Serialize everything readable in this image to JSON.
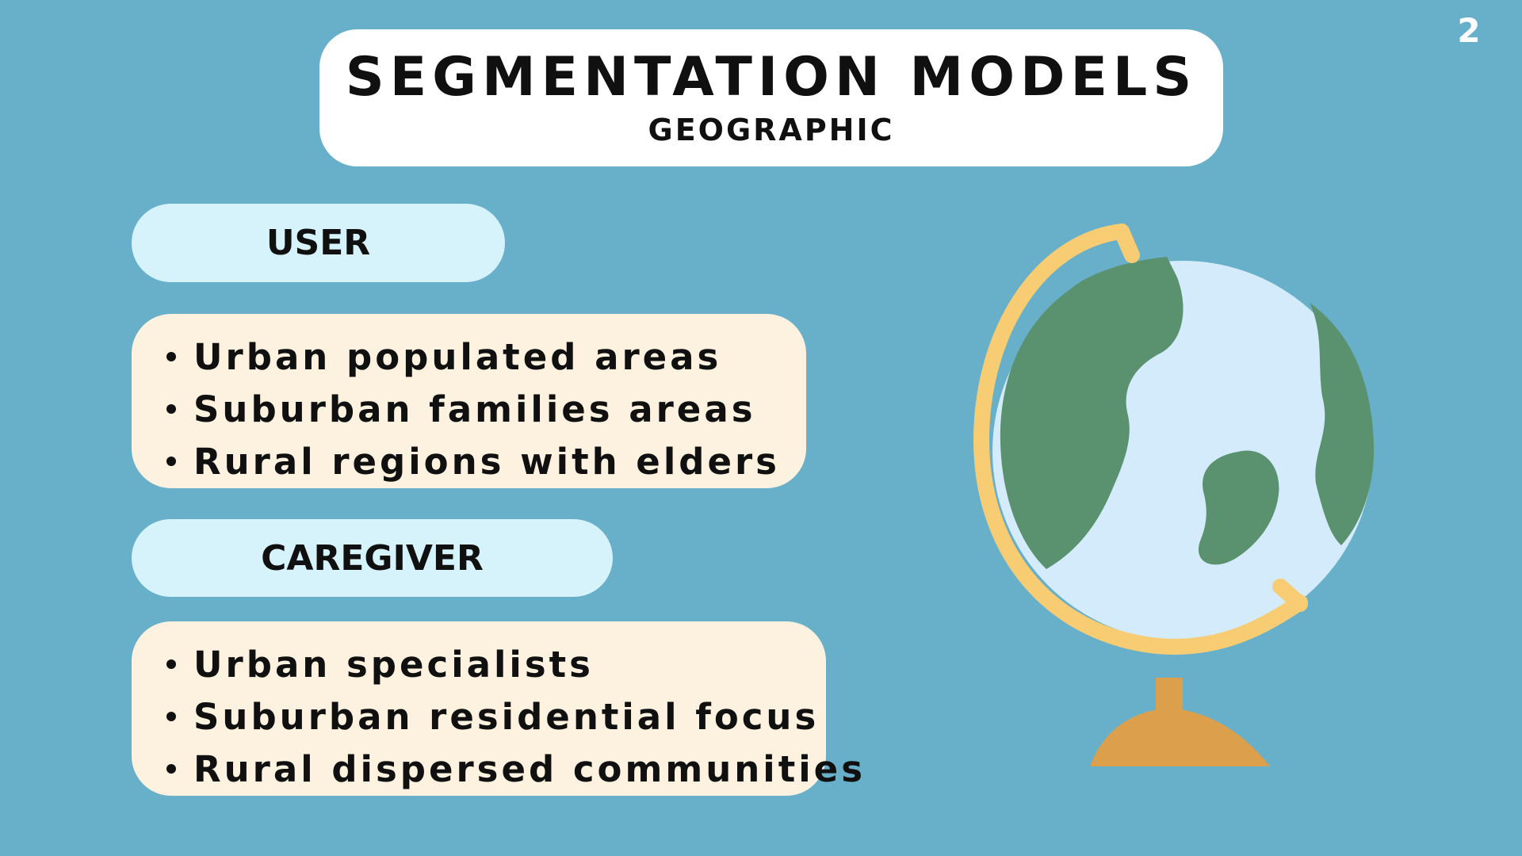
{
  "page_number": "2",
  "title": "SEGMENTATION MODELS",
  "subtitle": "GEOGRAPHIC",
  "sections": {
    "user": {
      "label": "USER",
      "items": [
        "Urban populated areas",
        "Suburban families areas",
        "Rural regions with elders"
      ]
    },
    "caregiver": {
      "label": "CAREGIVER",
      "items": [
        "Urban specialists",
        "Suburban residential focus",
        "Rural dispersed communities"
      ]
    }
  },
  "illustration": {
    "icon": "globe-icon",
    "colors": {
      "ocean": "#d3ebfb",
      "land": "#5a9270",
      "stand": "#f8cc73",
      "base": "#dca04c"
    }
  },
  "colors": {
    "background": "#68b0c9",
    "title_card": "#ffffff",
    "label_pill": "#d6f3fb",
    "list_card": "#fdf2df",
    "text": "#101010",
    "page_number": "#ffffff"
  }
}
